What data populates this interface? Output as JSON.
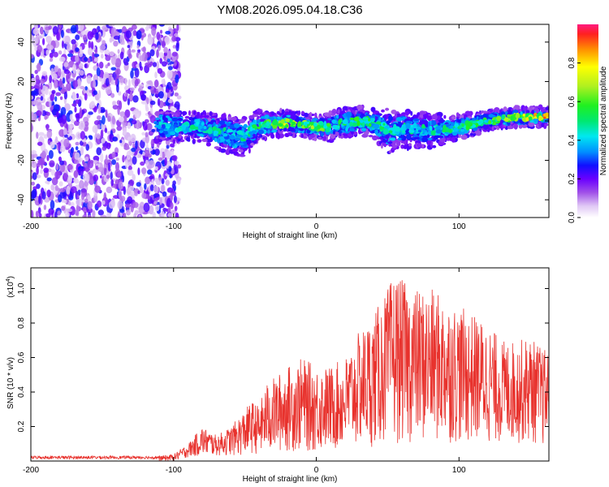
{
  "figure_title": "YM08.2026.095.04.18.C36",
  "chart_data": [
    {
      "type": "heatmap",
      "title": "YM08.2026.095.04.18.C36",
      "xlabel": "Height of straight line (km)",
      "ylabel": "Frequency (Hz)",
      "xlim": [
        -200,
        163
      ],
      "ylim": [
        -49,
        49
      ],
      "xticks": [
        -200,
        -100,
        0,
        100
      ],
      "yticks": [
        -40,
        -20,
        0,
        20,
        40
      ],
      "noise_region_x": [
        -200,
        -100
      ],
      "band": {
        "x": [
          -112,
          -100,
          -80,
          -60,
          -50,
          -40,
          -20,
          0,
          10,
          20,
          30,
          40,
          50,
          60,
          80,
          100,
          120,
          140,
          160
        ],
        "center": [
          -2,
          -3,
          -3,
          -7,
          -8,
          -2,
          -1,
          -3,
          -3,
          -1,
          0,
          -1,
          -5,
          -4,
          -5,
          -3,
          0,
          2,
          2
        ],
        "halfwidth": [
          7,
          6,
          6,
          8,
          8,
          6,
          5,
          5,
          6,
          6,
          6,
          6,
          9,
          8,
          7,
          5,
          4,
          4,
          4
        ],
        "peak_amplitude": [
          0.45,
          0.45,
          0.5,
          0.5,
          0.5,
          0.6,
          0.75,
          0.65,
          0.6,
          0.6,
          0.6,
          0.55,
          0.5,
          0.5,
          0.5,
          0.55,
          0.6,
          0.7,
          0.9
        ]
      },
      "colorbar": {
        "label": "Normalized spectral amplitude",
        "range": [
          0,
          1
        ],
        "ticks": [
          0.0,
          0.2,
          0.4,
          0.6,
          0.8
        ]
      }
    },
    {
      "type": "line",
      "xlabel": "Height of straight line (km)",
      "ylabel": "SNR (10 * v/v)",
      "y_multiplier_label": "(x10",
      "y_multiplier_exp": "4",
      "y_multiplier_close": ")",
      "xlim": [
        -200,
        163
      ],
      "ylim": [
        0,
        1.12
      ],
      "xticks": [
        -200,
        -100,
        0,
        100
      ],
      "yticks": [
        0.2,
        0.4,
        0.6,
        0.8,
        1.0
      ],
      "series": [
        {
          "name": "SNR",
          "color": "#e8322d",
          "envelope_x": [
            -200,
            -110,
            -100,
            -90,
            -80,
            -70,
            -60,
            -50,
            -45,
            -40,
            -35,
            -20,
            -10,
            0,
            10,
            20,
            30,
            40,
            50,
            55,
            60,
            70,
            80,
            90,
            100,
            110,
            120,
            130,
            140,
            150,
            160,
            163
          ],
          "envelope_max": [
            0.03,
            0.03,
            0.04,
            0.1,
            0.2,
            0.15,
            0.2,
            0.3,
            0.35,
            0.32,
            0.45,
            0.55,
            0.6,
            0.55,
            0.55,
            0.6,
            0.75,
            0.85,
            1.0,
            1.1,
            1.05,
            1.0,
            1.0,
            0.95,
            0.9,
            0.85,
            0.8,
            0.7,
            0.7,
            0.72,
            0.65,
            0.65
          ],
          "envelope_min": [
            0.0,
            0.0,
            0.0,
            0.02,
            0.03,
            0.03,
            0.03,
            0.03,
            0.04,
            0.04,
            0.04,
            0.05,
            0.05,
            0.05,
            0.06,
            0.06,
            0.08,
            0.08,
            0.1,
            0.1,
            0.1,
            0.1,
            0.1,
            0.1,
            0.1,
            0.1,
            0.1,
            0.1,
            0.1,
            0.1,
            0.08,
            0.05
          ]
        }
      ]
    }
  ]
}
